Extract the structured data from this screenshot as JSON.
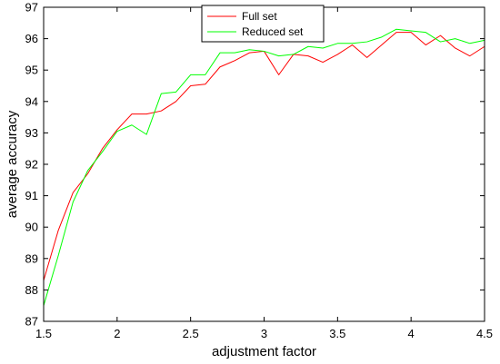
{
  "chart_data": {
    "type": "line",
    "title": "",
    "xlabel": "adjustment factor",
    "ylabel": "average accuracy",
    "xlim": [
      1.5,
      4.5
    ],
    "ylim": [
      87,
      97
    ],
    "xticks": [
      1.5,
      2,
      2.5,
      3,
      3.5,
      4,
      4.5
    ],
    "yticks": [
      87,
      88,
      89,
      90,
      91,
      92,
      93,
      94,
      95,
      96,
      97
    ],
    "xtick_labels": [
      "1.5",
      "2",
      "2.5",
      "3",
      "3.5",
      "4",
      "4.5"
    ],
    "ytick_labels": [
      "87",
      "88",
      "89",
      "90",
      "91",
      "92",
      "93",
      "94",
      "95",
      "96",
      "97"
    ],
    "grid": false,
    "legend_position": "top-center",
    "x": [
      1.5,
      1.6,
      1.7,
      1.8,
      1.9,
      2.0,
      2.1,
      2.2,
      2.3,
      2.4,
      2.5,
      2.6,
      2.7,
      2.8,
      2.9,
      3.0,
      3.1,
      3.2,
      3.3,
      3.4,
      3.5,
      3.6,
      3.7,
      3.8,
      3.9,
      4.0,
      4.1,
      4.2,
      4.3,
      4.4,
      4.5
    ],
    "series": [
      {
        "name": "Full set",
        "color": "#ff0000",
        "values": [
          88.3,
          89.9,
          91.1,
          91.7,
          92.5,
          93.1,
          93.6,
          93.6,
          93.7,
          94.0,
          94.5,
          94.55,
          95.1,
          95.3,
          95.55,
          95.6,
          94.85,
          95.5,
          95.45,
          95.25,
          95.5,
          95.8,
          95.4,
          95.8,
          96.2,
          96.2,
          95.8,
          96.1,
          95.7,
          95.45,
          95.75
        ]
      },
      {
        "name": "Reduced set",
        "color": "#00ff00",
        "values": [
          87.5,
          89.1,
          90.8,
          91.8,
          92.4,
          93.05,
          93.25,
          92.95,
          94.25,
          94.3,
          94.85,
          94.85,
          95.55,
          95.55,
          95.65,
          95.6,
          95.45,
          95.5,
          95.75,
          95.7,
          95.85,
          95.85,
          95.9,
          96.05,
          96.3,
          96.25,
          96.2,
          95.9,
          96.0,
          95.85,
          95.95
        ]
      }
    ]
  }
}
